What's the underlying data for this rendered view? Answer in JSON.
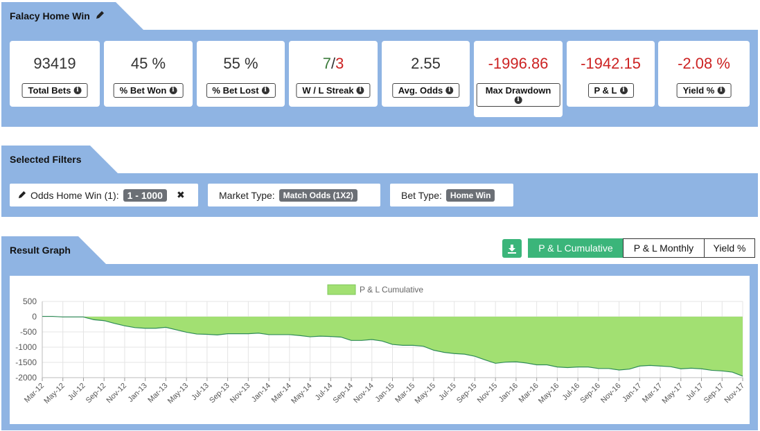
{
  "header": {
    "title": "Falacy Home Win",
    "edit_icon": "pencil-icon"
  },
  "stats": [
    {
      "value": "93419",
      "label": "Total Bets",
      "tone": "neutral"
    },
    {
      "value": "45 %",
      "label": "% Bet Won",
      "tone": "neutral"
    },
    {
      "value": "55 %",
      "label": "% Bet Lost",
      "tone": "neutral"
    },
    {
      "value": "7/3",
      "win": "7",
      "sep": "/",
      "loss": "3",
      "label": "W / L Streak",
      "tone": "streak"
    },
    {
      "value": "2.55",
      "label": "Avg. Odds",
      "tone": "neutral"
    },
    {
      "value": "-1996.86",
      "label": "Max Drawdown",
      "tone": "negative"
    },
    {
      "value": "-1942.15",
      "label": "P & L",
      "tone": "negative"
    },
    {
      "value": "-2.08 %",
      "label": "Yield %",
      "tone": "negative"
    }
  ],
  "filters": {
    "title": "Selected Filters",
    "items": [
      {
        "label": "Odds Home Win (1):",
        "value": "1 - 1000",
        "icon": "pencil-icon",
        "removable": true
      },
      {
        "label": "Market Type:",
        "value": "Match Odds (1X2)"
      },
      {
        "label": "Bet Type:",
        "value": "Home Win"
      }
    ]
  },
  "result": {
    "title": "Result Graph",
    "download_icon": "download-icon",
    "buttons": [
      {
        "label": "P & L Cumulative",
        "active": true
      },
      {
        "label": "P & L Monthly",
        "active": false
      },
      {
        "label": "Yield %",
        "active": false
      }
    ]
  },
  "colors": {
    "band": "#8fb4e3",
    "accent": "#3bb57a",
    "negative": "#cc2222",
    "area_fill": "#a2e072",
    "area_line": "#2e8b57"
  },
  "chart_data": {
    "type": "area",
    "legend": "P & L Cumulative",
    "legend_position": "top-center",
    "ylim": [
      -2000,
      500
    ],
    "yticks": [
      500,
      0,
      -500,
      -1000,
      -1500,
      -2000
    ],
    "grid": true,
    "x": [
      "Mar-12",
      "Apr-12",
      "May-12",
      "Jun-12",
      "Jul-12",
      "Aug-12",
      "Sep-12",
      "Oct-12",
      "Nov-12",
      "Dec-12",
      "Jan-13",
      "Feb-13",
      "Mar-13",
      "Apr-13",
      "May-13",
      "Jun-13",
      "Jul-13",
      "Aug-13",
      "Sep-13",
      "Oct-13",
      "Nov-13",
      "Dec-13",
      "Jan-14",
      "Feb-14",
      "Mar-14",
      "Apr-14",
      "May-14",
      "Jun-14",
      "Jul-14",
      "Aug-14",
      "Sep-14",
      "Oct-14",
      "Nov-14",
      "Dec-14",
      "Jan-15",
      "Feb-15",
      "Mar-15",
      "Apr-15",
      "May-15",
      "Jun-15",
      "Jul-15",
      "Aug-15",
      "Sep-15",
      "Oct-15",
      "Nov-15",
      "Dec-15",
      "Jan-16",
      "Feb-16",
      "Mar-16",
      "Apr-16",
      "May-16",
      "Jun-16",
      "Jul-16",
      "Aug-16",
      "Sep-16",
      "Oct-16",
      "Nov-16",
      "Dec-16",
      "Jan-17",
      "Feb-17",
      "Mar-17",
      "Apr-17",
      "May-17",
      "Jun-17",
      "Jul-17",
      "Aug-17",
      "Sep-17",
      "Oct-17",
      "Nov-17"
    ],
    "xtick_labels": [
      "Mar-12",
      "May-12",
      "Jul-12",
      "Sep-12",
      "Nov-12",
      "Jan-13",
      "Mar-13",
      "May-13",
      "Jul-13",
      "Sep-13",
      "Nov-13",
      "Jan-14",
      "Mar-14",
      "May-14",
      "Jul-14",
      "Sep-14",
      "Nov-14",
      "Jan-15",
      "Mar-15",
      "May-15",
      "Jul-15",
      "Sep-15",
      "Nov-15",
      "Jan-16",
      "Mar-16",
      "May-16",
      "Jul-16",
      "Sep-16",
      "Nov-16",
      "Jan-17",
      "Mar-17",
      "May-17",
      "Jul-17",
      "Sep-17",
      "Nov-17"
    ],
    "series": [
      {
        "name": "P & L Cumulative",
        "values": [
          10,
          10,
          -10,
          -10,
          -10,
          -100,
          -130,
          -220,
          -300,
          -360,
          -380,
          -380,
          -350,
          -430,
          -510,
          -570,
          -580,
          -600,
          -560,
          -560,
          -560,
          -540,
          -590,
          -590,
          -590,
          -620,
          -660,
          -640,
          -650,
          -670,
          -780,
          -780,
          -750,
          -800,
          -910,
          -940,
          -940,
          -970,
          -1100,
          -1170,
          -1210,
          -1230,
          -1300,
          -1420,
          -1530,
          -1490,
          -1480,
          -1520,
          -1580,
          -1580,
          -1650,
          -1670,
          -1650,
          -1650,
          -1700,
          -1700,
          -1750,
          -1720,
          -1620,
          -1600,
          -1620,
          -1640,
          -1710,
          -1690,
          -1710,
          -1760,
          -1780,
          -1820,
          -1950
        ]
      }
    ]
  }
}
